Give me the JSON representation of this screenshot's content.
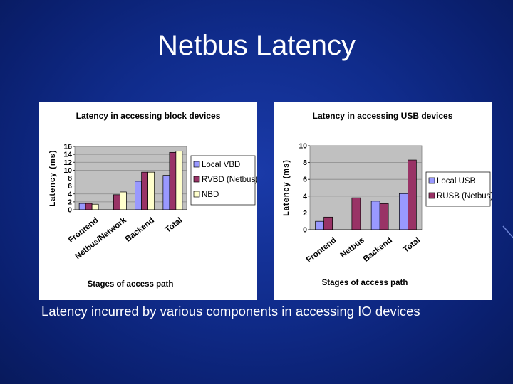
{
  "slide": {
    "title": "Netbus Latency",
    "caption": "Latency incurred by various components in accessing IO devices"
  },
  "colors": {
    "background": "#102c8c",
    "local": "#9999ff",
    "remote": "#993366",
    "nbd": "#ffffcc",
    "plot_area": "#c0c0c0"
  },
  "chart_data": [
    {
      "type": "bar",
      "title": "Latency in accessing block devices",
      "xlabel": "Stages of access path",
      "ylabel": "Latency (ms)",
      "categories": [
        "Frontend",
        "Netbus/Network",
        "Backend",
        "Total"
      ],
      "ylim": [
        0,
        16
      ],
      "yticks": [
        0,
        2,
        4,
        6,
        8,
        10,
        12,
        14,
        16
      ],
      "grid": true,
      "legend_position": "right",
      "series": [
        {
          "name": "Local VBD",
          "color": "#9999ff",
          "values": [
            1.6,
            null,
            7.2,
            8.7
          ]
        },
        {
          "name": "RVBD (Netbus)",
          "color": "#993366",
          "values": [
            1.6,
            3.8,
            9.5,
            14.5
          ]
        },
        {
          "name": "NBD",
          "color": "#ffffcc",
          "values": [
            1.4,
            4.5,
            9.5,
            14.8
          ]
        }
      ]
    },
    {
      "type": "bar",
      "title": "Latency in accessing USB devices",
      "xlabel": "Stages of access path",
      "ylabel": "Latency (ms)",
      "categories": [
        "Frontend",
        "Netbus",
        "Backend",
        "Total"
      ],
      "ylim": [
        0,
        10
      ],
      "yticks": [
        0,
        2,
        4,
        6,
        8,
        10
      ],
      "grid": true,
      "legend_position": "right",
      "series": [
        {
          "name": "Local USB",
          "color": "#9999ff",
          "values": [
            1.0,
            null,
            3.4,
            4.3
          ]
        },
        {
          "name": "RUSB (Netbus)",
          "color": "#993366",
          "values": [
            1.5,
            3.8,
            3.1,
            8.3
          ]
        }
      ]
    }
  ]
}
